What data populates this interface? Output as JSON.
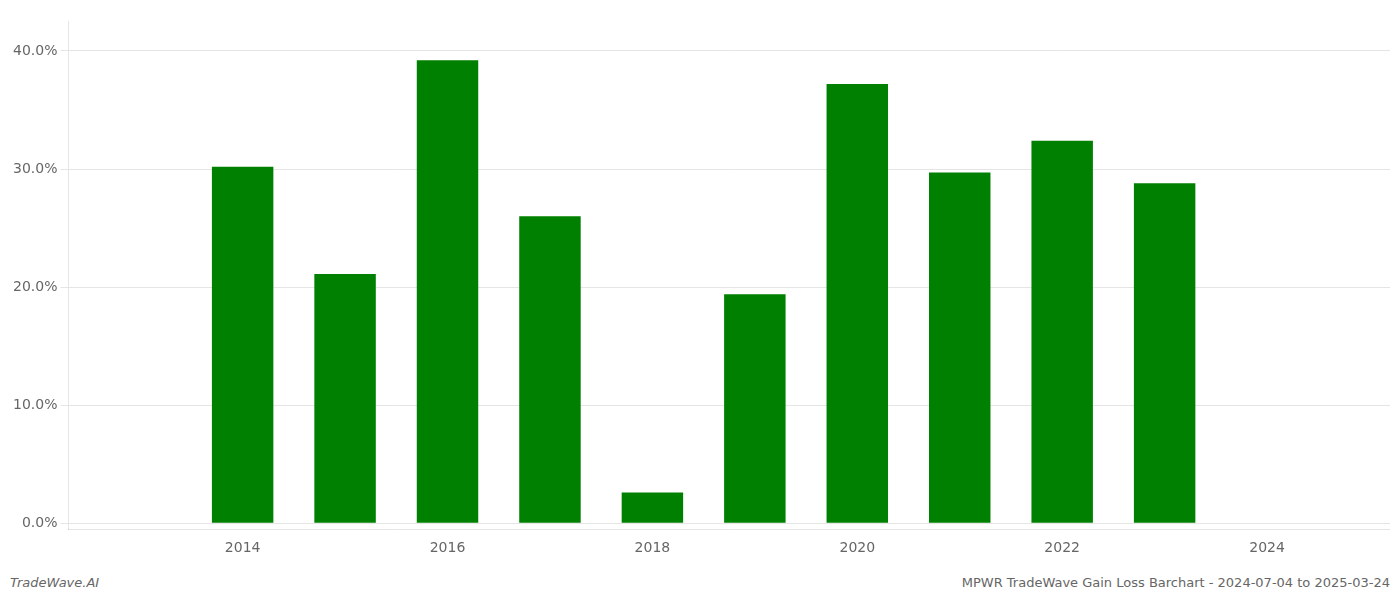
{
  "chart_data": {
    "type": "bar",
    "x": [
      2013,
      2014,
      2015,
      2016,
      2017,
      2018,
      2019,
      2020,
      2021,
      2022,
      2023,
      2024
    ],
    "values": [
      null,
      0.302,
      0.211,
      0.392,
      0.26,
      0.026,
      0.194,
      0.372,
      0.297,
      0.324,
      0.288,
      null
    ],
    "color": "#008000",
    "xlim": [
      2012.3,
      2025.2
    ],
    "xticks": [
      2014,
      2016,
      2018,
      2020,
      2022,
      2024
    ],
    "ylim": [
      -0.005,
      0.425
    ],
    "yticks": [
      {
        "value": 0.0,
        "label": "0.0%"
      },
      {
        "value": 0.1,
        "label": "10.0%"
      },
      {
        "value": 0.2,
        "label": "20.0%"
      },
      {
        "value": 0.3,
        "label": "30.0%"
      },
      {
        "value": 0.4,
        "label": "40.0%"
      }
    ],
    "grid": true,
    "annotations": [
      "TradeWave.AI",
      "MPWR TradeWave Gain Loss Barchart - 2024-07-04 to 2025-03-24"
    ]
  }
}
